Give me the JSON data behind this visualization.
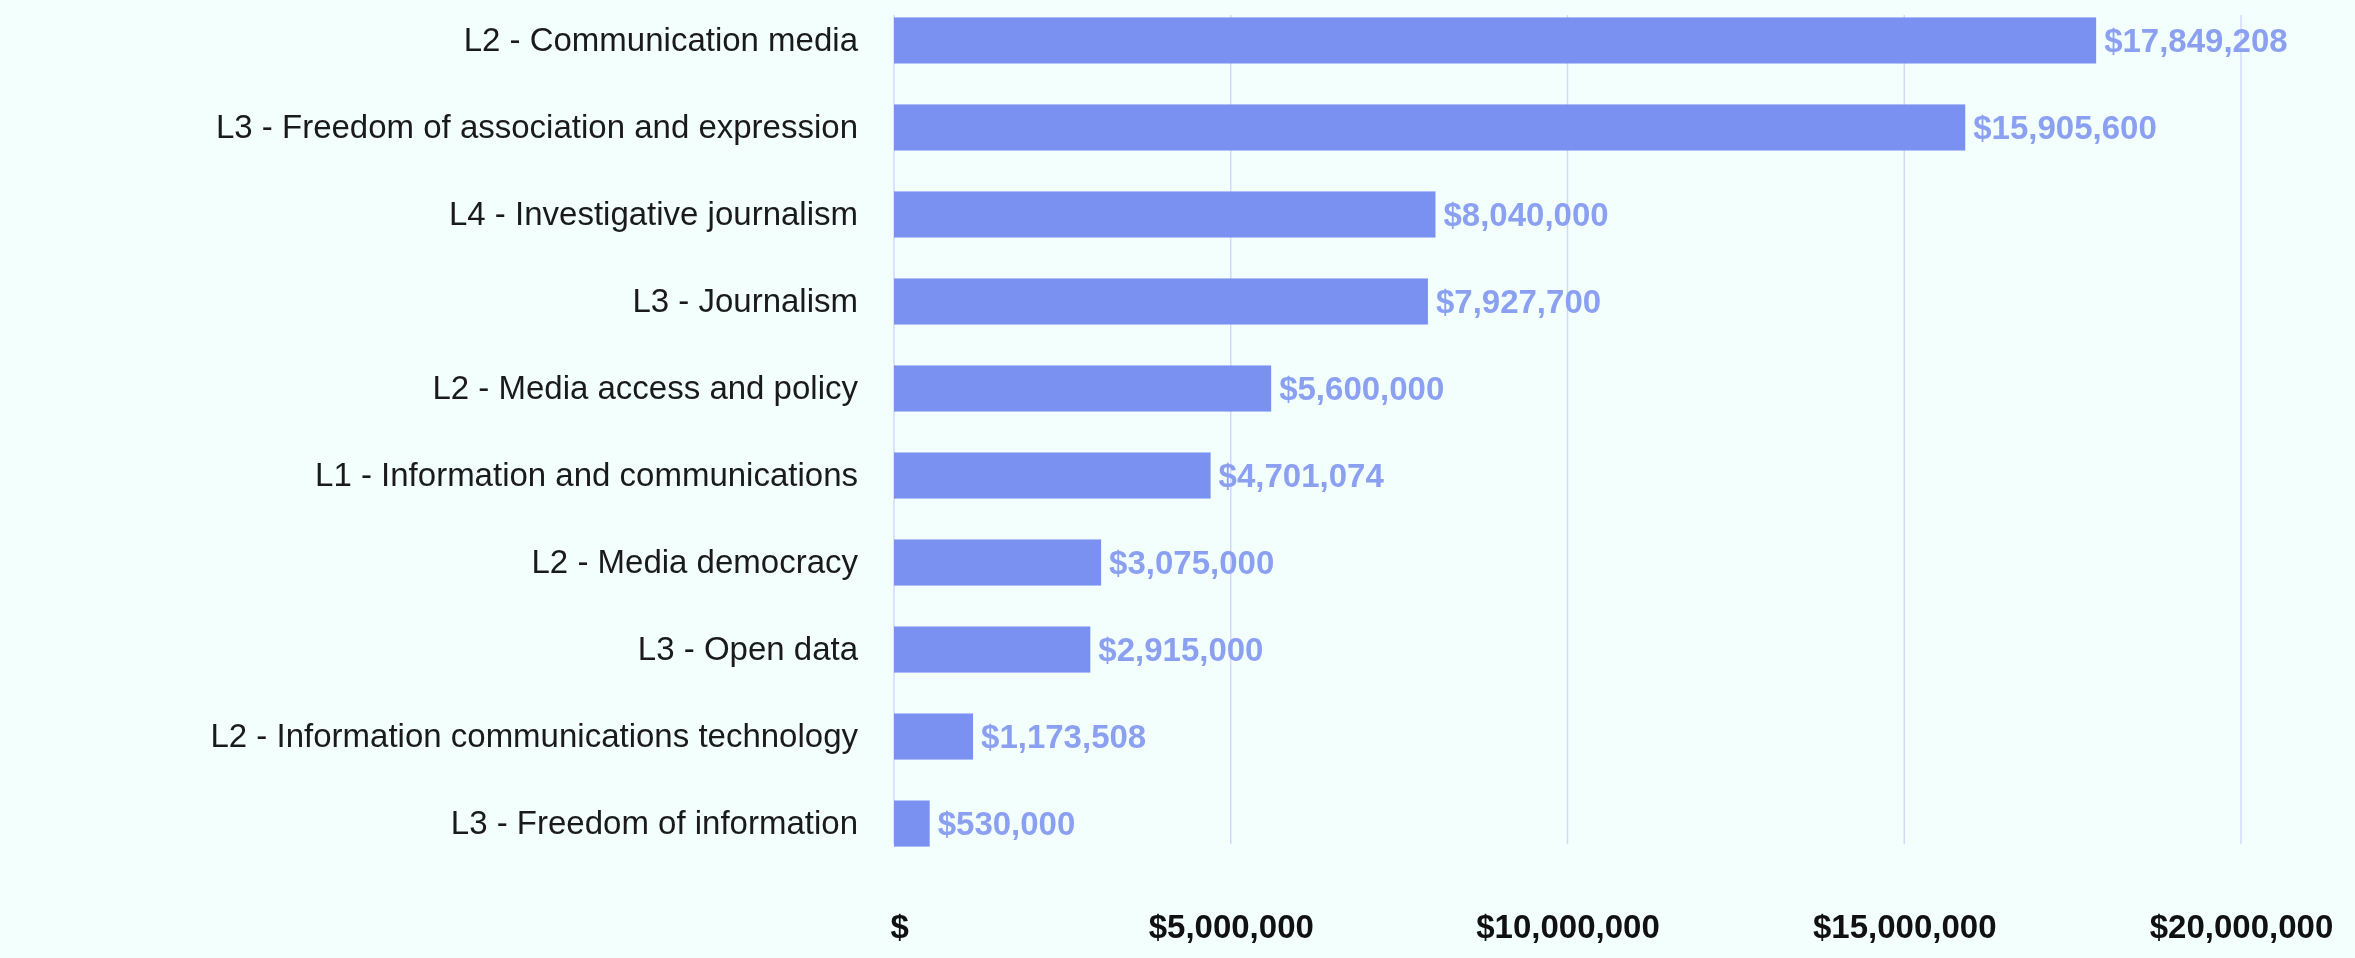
{
  "chart_data": {
    "type": "bar",
    "orientation": "horizontal",
    "categories": [
      "L2 - Communication media",
      "L3 - Freedom of association and expression",
      "L4 - Investigative journalism",
      "L3 - Journalism",
      "L2 - Media access and policy",
      "L1 - Information and communications",
      "L2 - Media democracy",
      "L3 - Open data",
      "L2 - Information communications technology",
      "L3 - Freedom of information"
    ],
    "values": [
      17849208,
      15905600,
      8040000,
      7927700,
      5600000,
      4701074,
      3075000,
      2915000,
      1173508,
      530000
    ],
    "value_labels": [
      "$17,849,208",
      "$15,905,600",
      "$8,040,000",
      "$7,927,700",
      "$5,600,000",
      "$4,701,074",
      "$3,075,000",
      "$2,915,000",
      "$1,173,508",
      "$530,000"
    ],
    "color": "#7b91f1",
    "xlim": [
      0,
      20000000
    ],
    "xticks": [
      {
        "value": 0,
        "label": "$"
      },
      {
        "value": 5000000,
        "label": "$5,000,000"
      },
      {
        "value": 10000000,
        "label": "$10,000,000"
      },
      {
        "value": 15000000,
        "label": "$15,000,000"
      },
      {
        "value": 20000000,
        "label": "$20,000,000"
      }
    ],
    "grid": "x"
  }
}
